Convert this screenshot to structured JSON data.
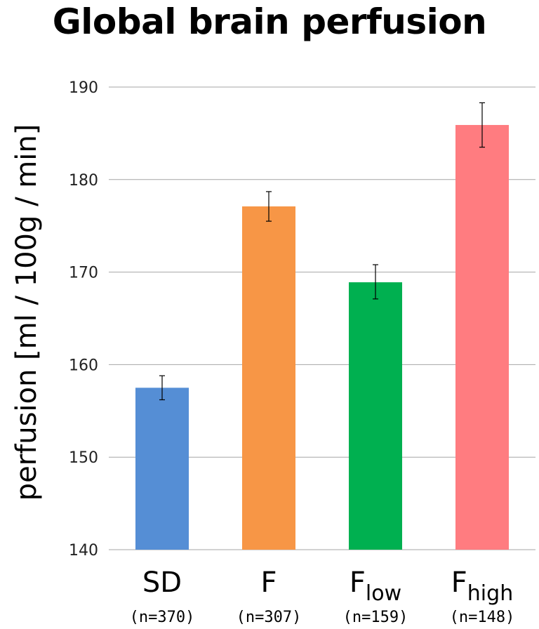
{
  "chart_data": {
    "type": "bar",
    "title": "Global brain perfusion",
    "ylabel": "perfusion [ml / 100g / min]",
    "xlabel": "",
    "ylim": [
      140,
      190
    ],
    "yticks": [
      "140",
      "150",
      "160",
      "170",
      "180",
      "190"
    ],
    "grid": true,
    "categories": [
      {
        "name": "SD",
        "sub": "",
        "n": "(n=370)"
      },
      {
        "name": "F",
        "sub": "",
        "n": "(n=307)"
      },
      {
        "name": "F",
        "sub": "low",
        "n": "(n=159)"
      },
      {
        "name": "F",
        "sub": "high",
        "n": "(n=148)"
      }
    ],
    "values": [
      157.5,
      177.1,
      168.9,
      185.9
    ],
    "error_low": [
      156.2,
      175.5,
      167.1,
      183.5
    ],
    "error_high": [
      158.8,
      178.7,
      170.8,
      188.3
    ],
    "colors": [
      "#558ed5",
      "#f79646",
      "#00b050",
      "#ff7c80"
    ]
  }
}
